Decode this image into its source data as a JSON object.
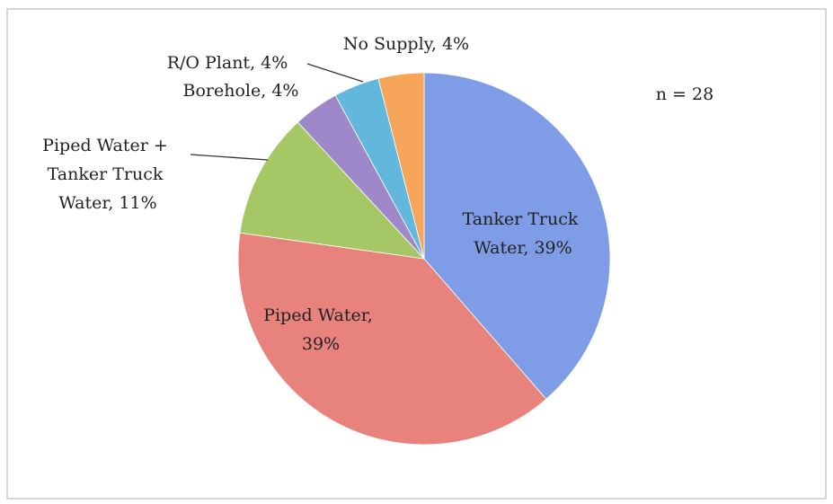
{
  "chart_data": {
    "type": "pie",
    "values": [
      39,
      39,
      11,
      4,
      4,
      4
    ],
    "value_labels": [
      "Tanker Truck Water, 39%",
      "Piped Water, 39%",
      "Piped Water + Tanker Truck Water, 11%",
      "Borehole, 4%",
      "R/O Plant, 4%",
      "No Supply, 4%"
    ],
    "colors": [
      "#7f9de6",
      "#e8827d",
      "#a6c766",
      "#9e88c9",
      "#62b8dc",
      "#f6a55b"
    ],
    "annotation": "n = 28"
  }
}
